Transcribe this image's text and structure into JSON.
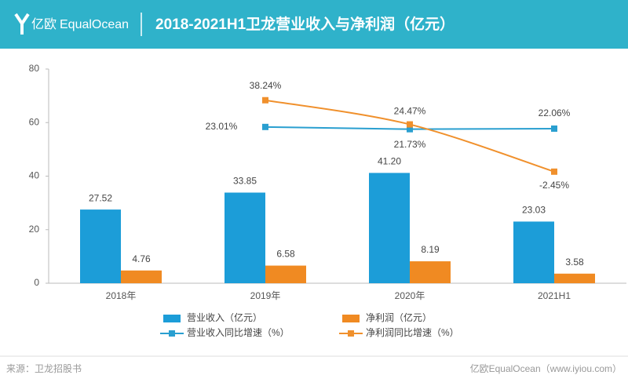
{
  "header": {
    "logo_cn": "亿欧",
    "logo_en": "EqualOcean"
  },
  "footer": {
    "source": "来源：卫龙招股书",
    "brand": "亿欧EqualOcean（www.iyiou.com）"
  },
  "chart_data": {
    "type": "bar",
    "title": "2018-2021H1卫龙营业收入与净利润（亿元）",
    "categories": [
      "2018年",
      "2019年",
      "2020年",
      "2021H1"
    ],
    "ylim": [
      0,
      80
    ],
    "yticks": [
      0,
      20,
      40,
      60,
      80
    ],
    "y2lim": [
      -66,
      56
    ],
    "series": [
      {
        "name": "营业收入（亿元）",
        "type": "bar",
        "color": "#1c9dd8",
        "values": [
          27.52,
          33.85,
          41.2,
          23.03
        ],
        "value_labels": [
          "27.52",
          "33.85",
          "41.20",
          "23.03"
        ]
      },
      {
        "name": "净利润（亿元）",
        "type": "bar",
        "color": "#f08a22",
        "values": [
          4.76,
          6.58,
          8.19,
          3.58
        ]
      },
      {
        "name": "营业收入同比增速（%）",
        "type": "line",
        "axis": "y2",
        "color": "#2a9fd0",
        "values": [
          null,
          23.01,
          21.73,
          22.06
        ],
        "value_labels": [
          null,
          "23.01%",
          "21.73%",
          "22.06%"
        ]
      },
      {
        "name": "净利润同比增速（%）",
        "type": "line",
        "axis": "y2",
        "smooth": true,
        "color": "#f0902c",
        "values": [
          null,
          38.24,
          24.47,
          -2.45
        ],
        "value_labels": [
          null,
          "38.24%",
          "24.47%",
          "-2.45%"
        ]
      }
    ]
  }
}
